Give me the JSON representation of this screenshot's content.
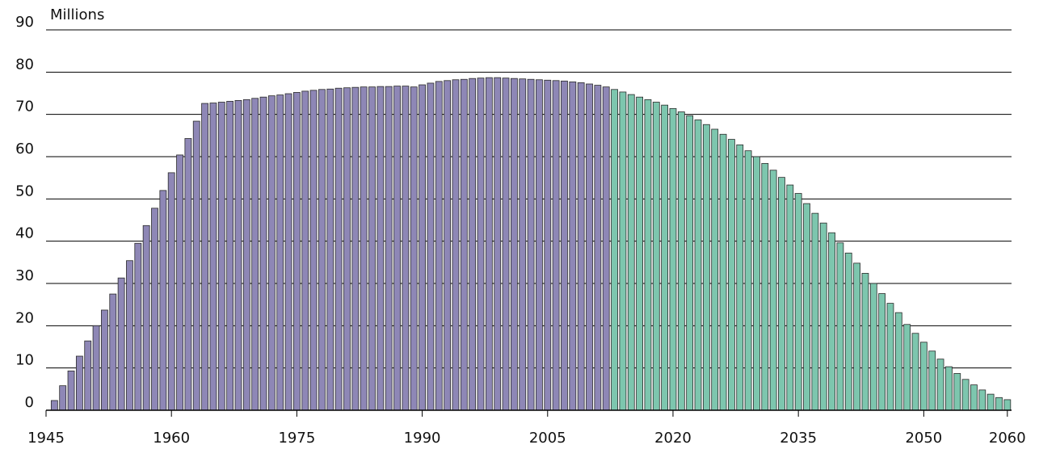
{
  "chart_data": {
    "type": "bar",
    "y_label": "Millions",
    "xlim": [
      1945,
      2060.5
    ],
    "xticks": [
      1945,
      1960,
      1975,
      1990,
      2005,
      2020,
      2035,
      2050,
      2060
    ],
    "ylim": [
      0,
      90
    ],
    "yticks": [
      0,
      10,
      20,
      30,
      40,
      50,
      60,
      70,
      80,
      90
    ],
    "grid": true,
    "series": [
      {
        "color": "#8e87b6",
        "x": [
          1946,
          1947,
          1948,
          1949,
          1950,
          1951,
          1952,
          1953,
          1954,
          1955,
          1956,
          1957,
          1958,
          1959,
          1960,
          1961,
          1962,
          1963,
          1964,
          1965,
          1966,
          1967,
          1968,
          1969,
          1970,
          1971,
          1972,
          1973,
          1974,
          1975,
          1976,
          1977,
          1978,
          1979,
          1980,
          1981,
          1982,
          1983,
          1984,
          1985,
          1986,
          1987,
          1988,
          1989,
          1990,
          1991,
          1992,
          1993,
          1994,
          1995,
          1996,
          1997,
          1998,
          1999,
          2000,
          2001,
          2002,
          2003,
          2004,
          2005,
          2006,
          2007,
          2008,
          2009,
          2010,
          2011,
          2012
        ],
        "values": [
          2.3,
          5.8,
          9.3,
          12.8,
          16.4,
          20,
          23.7,
          27.5,
          31.3,
          35.4,
          39.5,
          43.7,
          47.8,
          52,
          56.2,
          60.4,
          64.3,
          68.4,
          72.6,
          72.7,
          72.9,
          73.1,
          73.3,
          73.5,
          73.8,
          74.1,
          74.4,
          74.6,
          74.9,
          75.2,
          75.5,
          75.7,
          75.9,
          76,
          76.2,
          76.3,
          76.4,
          76.5,
          76.5,
          76.6,
          76.6,
          76.7,
          76.7,
          76.5,
          77,
          77.4,
          77.8,
          78,
          78.2,
          78.3,
          78.5,
          78.6,
          78.7,
          78.7,
          78.6,
          78.5,
          78.4,
          78.3,
          78.2,
          78.1,
          78,
          77.9,
          77.7,
          77.5,
          77.2,
          76.9,
          76.5
        ]
      },
      {
        "color": "#7dc6ae",
        "x": [
          2013,
          2014,
          2015,
          2016,
          2017,
          2018,
          2019,
          2020,
          2021,
          2022,
          2023,
          2024,
          2025,
          2026,
          2027,
          2028,
          2029,
          2030,
          2031,
          2032,
          2033,
          2034,
          2035,
          2036,
          2037,
          2038,
          2039,
          2040,
          2041,
          2042,
          2043,
          2044,
          2045,
          2046,
          2047,
          2048,
          2049,
          2050,
          2051,
          2052,
          2053,
          2054,
          2055,
          2056,
          2057,
          2058,
          2059,
          2060
        ],
        "values": [
          75.9,
          75.3,
          74.7,
          74.1,
          73.5,
          72.9,
          72.2,
          71.4,
          70.6,
          69.7,
          68.7,
          67.6,
          66.5,
          65.3,
          64.1,
          62.8,
          61.4,
          60,
          58.4,
          56.8,
          55.1,
          53.3,
          51.3,
          48.9,
          46.6,
          44.3,
          42,
          39.6,
          37.2,
          34.8,
          32.4,
          30,
          27.6,
          25.3,
          23.1,
          20.3,
          18.2,
          16.1,
          14,
          12.1,
          10.3,
          8.7,
          7.3,
          6,
          4.8,
          3.8,
          3,
          2.5
        ]
      }
    ]
  }
}
